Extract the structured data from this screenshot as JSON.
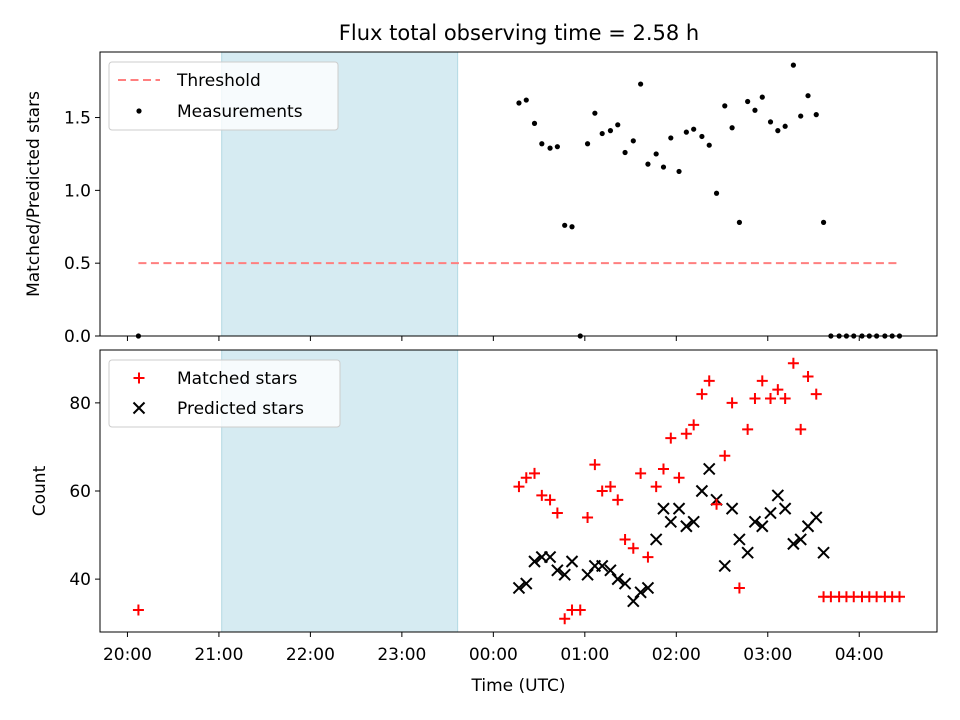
{
  "figure": {
    "title": "Flux total observing time = 2.58 h",
    "highlight_color": "#add8e6",
    "highlight_span": [
      1.03,
      3.61
    ]
  },
  "chart_data": [
    {
      "type": "scatter",
      "ylabel": "Matched/Predicted stars",
      "ylim": [
        0,
        1.95
      ],
      "xlim": [
        -0.3,
        8.85
      ],
      "yticks": [
        0.0,
        0.5,
        1.0,
        1.5
      ],
      "ytick_labels": [
        "0.0",
        "0.5",
        "1.0",
        "1.5"
      ],
      "legend": {
        "position": "top-left",
        "entries": [
          {
            "key": "threshold",
            "label": "Threshold"
          },
          {
            "key": "measurements",
            "label": "Measurements"
          }
        ]
      },
      "threshold": {
        "name": "Threshold",
        "value": 0.5,
        "x_range": [
          0.12,
          8.45
        ],
        "color": "#ff7f7f"
      },
      "measurements": {
        "name": "Measurements",
        "color": "#000000",
        "points": [
          [
            0.12,
            0.0
          ],
          [
            4.28,
            1.6
          ],
          [
            4.36,
            1.62
          ],
          [
            4.45,
            1.46
          ],
          [
            4.53,
            1.32
          ],
          [
            4.62,
            1.29
          ],
          [
            4.7,
            1.3
          ],
          [
            4.78,
            0.76
          ],
          [
            4.86,
            0.75
          ],
          [
            4.95,
            0.0
          ],
          [
            5.03,
            1.32
          ],
          [
            5.11,
            1.53
          ],
          [
            5.19,
            1.39
          ],
          [
            5.28,
            1.41
          ],
          [
            5.36,
            1.45
          ],
          [
            5.44,
            1.26
          ],
          [
            5.53,
            1.34
          ],
          [
            5.61,
            1.73
          ],
          [
            5.69,
            1.18
          ],
          [
            5.78,
            1.25
          ],
          [
            5.86,
            1.16
          ],
          [
            5.94,
            1.36
          ],
          [
            6.03,
            1.13
          ],
          [
            6.11,
            1.4
          ],
          [
            6.19,
            1.42
          ],
          [
            6.28,
            1.37
          ],
          [
            6.36,
            1.31
          ],
          [
            6.44,
            0.98
          ],
          [
            6.53,
            1.58
          ],
          [
            6.61,
            1.43
          ],
          [
            6.69,
            0.78
          ],
          [
            6.78,
            1.61
          ],
          [
            6.86,
            1.55
          ],
          [
            6.94,
            1.64
          ],
          [
            7.03,
            1.47
          ],
          [
            7.11,
            1.41
          ],
          [
            7.19,
            1.44
          ],
          [
            7.28,
            1.86
          ],
          [
            7.36,
            1.51
          ],
          [
            7.44,
            1.65
          ],
          [
            7.53,
            1.52
          ],
          [
            7.61,
            0.78
          ],
          [
            7.69,
            0.0
          ],
          [
            7.78,
            0.0
          ],
          [
            7.86,
            0.0
          ],
          [
            7.94,
            0.0
          ],
          [
            8.03,
            0.0
          ],
          [
            8.11,
            0.0
          ],
          [
            8.19,
            0.0
          ],
          [
            8.28,
            0.0
          ],
          [
            8.36,
            0.0
          ],
          [
            8.44,
            0.0
          ]
        ]
      }
    },
    {
      "type": "scatter",
      "xlabel": "Time (UTC)",
      "ylabel": "Count",
      "ylim": [
        28,
        92
      ],
      "xlim": [
        -0.3,
        8.85
      ],
      "yticks": [
        40,
        60,
        80
      ],
      "ytick_labels": [
        "40",
        "60",
        "80"
      ],
      "x_ticks": [
        0,
        1,
        2,
        3,
        4,
        5,
        6,
        7,
        8
      ],
      "x_tick_labels": [
        "20:00",
        "21:00",
        "22:00",
        "23:00",
        "00:00",
        "01:00",
        "02:00",
        "03:00",
        "04:00"
      ],
      "legend": {
        "position": "top-left",
        "entries": [
          {
            "key": "matched",
            "label": "Matched stars"
          },
          {
            "key": "predicted",
            "label": "Predicted stars"
          }
        ]
      },
      "matched": {
        "name": "Matched stars",
        "color": "#ff0000",
        "points": [
          [
            0.12,
            33
          ],
          [
            4.28,
            61
          ],
          [
            4.36,
            63
          ],
          [
            4.45,
            64
          ],
          [
            4.53,
            59
          ],
          [
            4.62,
            58
          ],
          [
            4.7,
            55
          ],
          [
            4.78,
            31
          ],
          [
            4.86,
            33
          ],
          [
            4.95,
            33
          ],
          [
            5.03,
            54
          ],
          [
            5.11,
            66
          ],
          [
            5.19,
            60
          ],
          [
            5.28,
            61
          ],
          [
            5.36,
            58
          ],
          [
            5.44,
            49
          ],
          [
            5.53,
            47
          ],
          [
            5.61,
            64
          ],
          [
            5.69,
            45
          ],
          [
            5.78,
            61
          ],
          [
            5.86,
            65
          ],
          [
            5.94,
            72
          ],
          [
            6.03,
            63
          ],
          [
            6.11,
            73
          ],
          [
            6.19,
            75
          ],
          [
            6.28,
            82
          ],
          [
            6.36,
            85
          ],
          [
            6.44,
            57
          ],
          [
            6.53,
            68
          ],
          [
            6.61,
            80
          ],
          [
            6.69,
            38
          ],
          [
            6.78,
            74
          ],
          [
            6.86,
            81
          ],
          [
            6.94,
            85
          ],
          [
            7.03,
            81
          ],
          [
            7.11,
            83
          ],
          [
            7.19,
            81
          ],
          [
            7.28,
            89
          ],
          [
            7.36,
            74
          ],
          [
            7.44,
            86
          ],
          [
            7.53,
            82
          ],
          [
            7.61,
            36
          ],
          [
            7.69,
            36
          ],
          [
            7.78,
            36
          ],
          [
            7.86,
            36
          ],
          [
            7.94,
            36
          ],
          [
            8.03,
            36
          ],
          [
            8.11,
            36
          ],
          [
            8.19,
            36
          ],
          [
            8.28,
            36
          ],
          [
            8.36,
            36
          ],
          [
            8.44,
            36
          ]
        ]
      },
      "predicted": {
        "name": "Predicted stars",
        "color": "#000000",
        "points": [
          [
            4.28,
            38
          ],
          [
            4.36,
            39
          ],
          [
            4.45,
            44
          ],
          [
            4.53,
            45
          ],
          [
            4.62,
            45
          ],
          [
            4.7,
            42
          ],
          [
            4.78,
            41
          ],
          [
            4.86,
            44
          ],
          [
            5.03,
            41
          ],
          [
            5.11,
            43
          ],
          [
            5.19,
            43
          ],
          [
            5.28,
            42
          ],
          [
            5.36,
            40
          ],
          [
            5.44,
            39
          ],
          [
            5.53,
            35
          ],
          [
            5.61,
            37
          ],
          [
            5.69,
            38
          ],
          [
            5.78,
            49
          ],
          [
            5.86,
            56
          ],
          [
            5.94,
            53
          ],
          [
            6.03,
            56
          ],
          [
            6.11,
            52
          ],
          [
            6.19,
            53
          ],
          [
            6.28,
            60
          ],
          [
            6.36,
            65
          ],
          [
            6.44,
            58
          ],
          [
            6.53,
            43
          ],
          [
            6.61,
            56
          ],
          [
            6.69,
            49
          ],
          [
            6.78,
            46
          ],
          [
            6.86,
            53
          ],
          [
            6.94,
            52
          ],
          [
            7.03,
            55
          ],
          [
            7.11,
            59
          ],
          [
            7.19,
            56
          ],
          [
            7.28,
            48
          ],
          [
            7.36,
            49
          ],
          [
            7.44,
            52
          ],
          [
            7.53,
            54
          ],
          [
            7.61,
            46
          ]
        ]
      }
    }
  ]
}
